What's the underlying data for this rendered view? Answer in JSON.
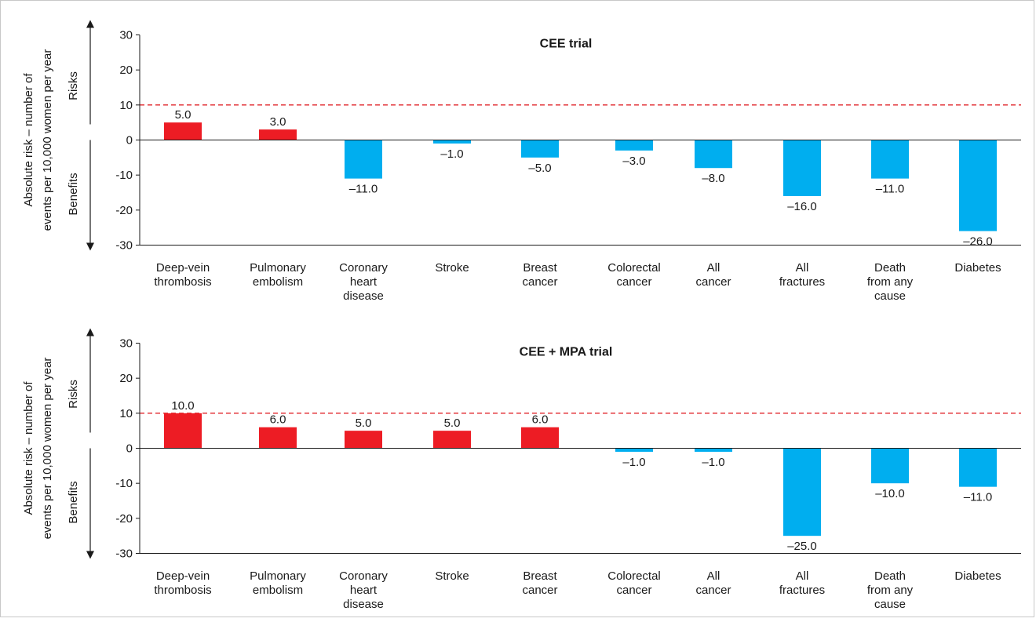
{
  "colors": {
    "risk": "#ed1c24",
    "benefit": "#00aeef",
    "threshold": "#e0262b",
    "axis": "#1a1a1a"
  },
  "chart_data": [
    {
      "type": "bar",
      "title": "CEE trial",
      "ylabel_line1": "Absolute risk – number of",
      "ylabel_line2": "events per 10,000 women per year",
      "risks_label": "Risks",
      "benefits_label": "Benefits",
      "ylim": [
        -30,
        30
      ],
      "yticks": [
        "30",
        "20",
        "10",
        "0",
        "-10",
        "-20",
        "-30"
      ],
      "threshold": 10,
      "categories": [
        [
          "Deep-vein",
          "thrombosis"
        ],
        [
          "Pulmonary",
          "embolism"
        ],
        [
          "Coronary",
          "heart",
          "disease"
        ],
        [
          "Stroke"
        ],
        [
          "Breast",
          "cancer"
        ],
        [
          "Colorectal",
          "cancer"
        ],
        [
          "All",
          "cancer"
        ],
        [
          "All",
          "fractures"
        ],
        [
          "Death",
          "from any",
          "cause"
        ],
        [
          "Diabetes"
        ]
      ],
      "values": [
        5.0,
        3.0,
        -11.0,
        -1.0,
        -5.0,
        -3.0,
        -8.0,
        -16.0,
        -11.0,
        -26.0
      ],
      "value_labels": [
        "5.0",
        "3.0",
        "–11.0",
        "–1.0",
        "–5.0",
        "–3.0",
        "–8.0",
        "–16.0",
        "–11.0",
        "–26.0"
      ]
    },
    {
      "type": "bar",
      "title": "CEE + MPA trial",
      "ylabel_line1": "Absolute risk – number of",
      "ylabel_line2": "events per 10,000 women per year",
      "risks_label": "Risks",
      "benefits_label": "Benefits",
      "ylim": [
        -30,
        30
      ],
      "yticks": [
        "30",
        "20",
        "10",
        "0",
        "-10",
        "-20",
        "-30"
      ],
      "threshold": 10,
      "categories": [
        [
          "Deep-vein",
          "thrombosis"
        ],
        [
          "Pulmonary",
          "embolism"
        ],
        [
          "Coronary",
          "heart",
          "disease"
        ],
        [
          "Stroke"
        ],
        [
          "Breast",
          "cancer"
        ],
        [
          "Colorectal",
          "cancer"
        ],
        [
          "All",
          "cancer"
        ],
        [
          "All",
          "fractures"
        ],
        [
          "Death",
          "from any",
          "cause"
        ],
        [
          "Diabetes"
        ]
      ],
      "values": [
        10.0,
        6.0,
        5.0,
        5.0,
        6.0,
        -1.0,
        -1.0,
        -25.0,
        -10.0,
        -11.0
      ],
      "value_labels": [
        "10.0",
        "6.0",
        "5.0",
        "5.0",
        "6.0",
        "–1.0",
        "–1.0",
        "–25.0",
        "–10.0",
        "–11.0"
      ]
    }
  ]
}
